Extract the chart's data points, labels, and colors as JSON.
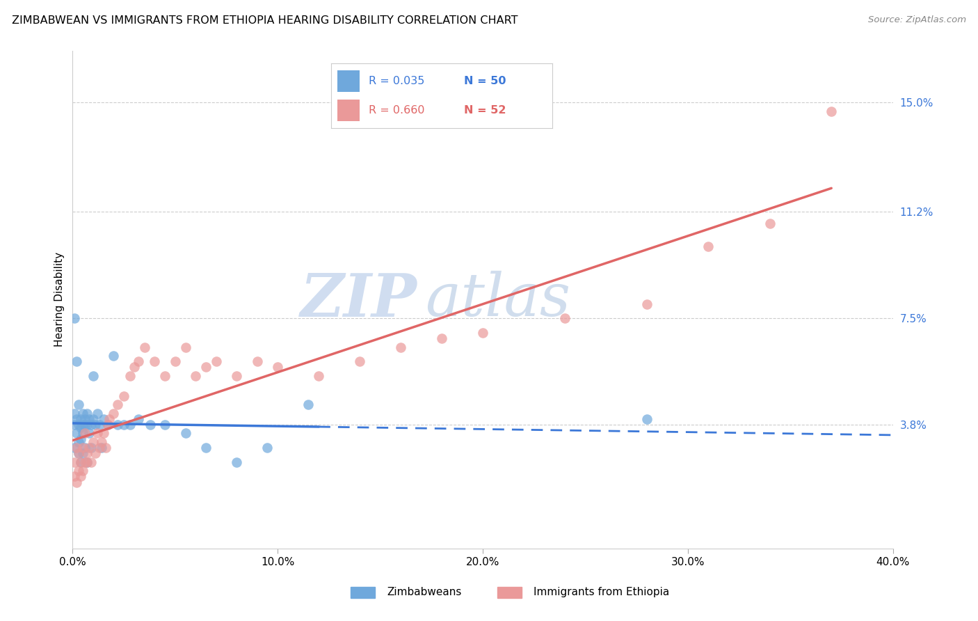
{
  "title": "ZIMBABWEAN VS IMMIGRANTS FROM ETHIOPIA HEARING DISABILITY CORRELATION CHART",
  "source": "Source: ZipAtlas.com",
  "xlabel_ticks": [
    "0.0%",
    "10.0%",
    "20.0%",
    "30.0%",
    "40.0%"
  ],
  "xlabel_tick_vals": [
    0.0,
    0.1,
    0.2,
    0.3,
    0.4
  ],
  "ylabel": "Hearing Disability",
  "ytick_labels": [
    "15.0%",
    "11.2%",
    "7.5%",
    "3.8%"
  ],
  "ytick_vals": [
    0.15,
    0.112,
    0.075,
    0.038
  ],
  "xlim": [
    0.0,
    0.4
  ],
  "ylim": [
    -0.005,
    0.168
  ],
  "legend_label1": "Zimbabweans",
  "legend_label2": "Immigrants from Ethiopia",
  "legend_R1": "R = 0.035",
  "legend_N1": "N = 50",
  "legend_R2": "R = 0.660",
  "legend_N2": "N = 52",
  "color_blue": "#6fa8dc",
  "color_pink": "#ea9999",
  "color_blue_line": "#3c78d8",
  "color_pink_line": "#e06666",
  "watermark_zip": "ZIP",
  "watermark_atlas": "atlas",
  "zim_x": [
    0.001,
    0.001,
    0.001,
    0.001,
    0.002,
    0.002,
    0.002,
    0.003,
    0.003,
    0.003,
    0.003,
    0.004,
    0.004,
    0.004,
    0.004,
    0.005,
    0.005,
    0.005,
    0.005,
    0.006,
    0.006,
    0.006,
    0.007,
    0.007,
    0.007,
    0.008,
    0.008,
    0.009,
    0.009,
    0.01,
    0.01,
    0.011,
    0.012,
    0.013,
    0.014,
    0.015,
    0.017,
    0.02,
    0.022,
    0.025,
    0.028,
    0.032,
    0.038,
    0.045,
    0.055,
    0.065,
    0.08,
    0.095,
    0.115,
    0.28
  ],
  "zim_y": [
    0.03,
    0.038,
    0.042,
    0.075,
    0.035,
    0.04,
    0.06,
    0.028,
    0.032,
    0.038,
    0.045,
    0.033,
    0.037,
    0.025,
    0.04,
    0.038,
    0.035,
    0.042,
    0.028,
    0.04,
    0.038,
    0.03,
    0.042,
    0.038,
    0.025,
    0.04,
    0.035,
    0.038,
    0.03,
    0.055,
    0.04,
    0.038,
    0.042,
    0.038,
    0.03,
    0.04,
    0.038,
    0.062,
    0.038,
    0.038,
    0.038,
    0.04,
    0.038,
    0.038,
    0.035,
    0.03,
    0.025,
    0.03,
    0.045,
    0.04
  ],
  "eth_x": [
    0.001,
    0.001,
    0.002,
    0.002,
    0.003,
    0.003,
    0.004,
    0.004,
    0.005,
    0.005,
    0.006,
    0.006,
    0.007,
    0.007,
    0.008,
    0.009,
    0.01,
    0.011,
    0.012,
    0.013,
    0.014,
    0.015,
    0.016,
    0.017,
    0.018,
    0.02,
    0.022,
    0.025,
    0.028,
    0.03,
    0.032,
    0.035,
    0.04,
    0.045,
    0.05,
    0.055,
    0.06,
    0.065,
    0.07,
    0.08,
    0.09,
    0.1,
    0.12,
    0.14,
    0.16,
    0.18,
    0.2,
    0.24,
    0.28,
    0.31,
    0.34,
    0.37
  ],
  "eth_y": [
    0.02,
    0.025,
    0.018,
    0.03,
    0.022,
    0.028,
    0.02,
    0.025,
    0.022,
    0.03,
    0.025,
    0.035,
    0.025,
    0.028,
    0.03,
    0.025,
    0.032,
    0.028,
    0.035,
    0.03,
    0.032,
    0.035,
    0.03,
    0.038,
    0.04,
    0.042,
    0.045,
    0.048,
    0.055,
    0.058,
    0.06,
    0.065,
    0.06,
    0.055,
    0.06,
    0.065,
    0.055,
    0.058,
    0.06,
    0.055,
    0.06,
    0.058,
    0.055,
    0.06,
    0.065,
    0.068,
    0.07,
    0.075,
    0.08,
    0.1,
    0.108,
    0.147
  ]
}
